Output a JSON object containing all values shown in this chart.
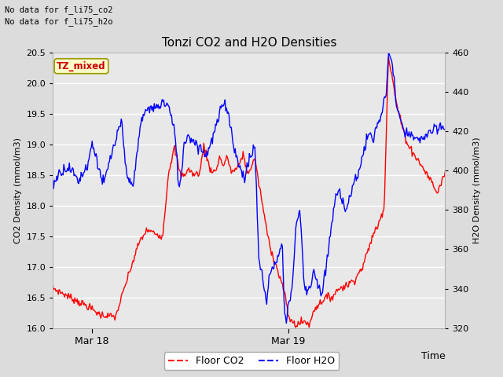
{
  "title": "Tonzi CO2 and H2O Densities",
  "xlabel": "Time",
  "ylabel_left": "CO2 Density (mmol/m3)",
  "ylabel_right": "H2O Density (mmol/m3)",
  "annotation_line1": "No data for f_li75_co2",
  "annotation_line2": "No data for f_li75_h2o",
  "tz_label": "TZ_mixed",
  "legend_entries": [
    "Floor CO2",
    "Floor H2O"
  ],
  "co2_ylim": [
    16.0,
    20.5
  ],
  "h2o_ylim": [
    320,
    460
  ],
  "co2_yticks": [
    16.0,
    16.5,
    17.0,
    17.5,
    18.0,
    18.5,
    19.0,
    19.5,
    20.0,
    20.5
  ],
  "h2o_yticks": [
    320,
    340,
    360,
    380,
    400,
    420,
    440,
    460
  ],
  "fig_bg": "#dcdcdc",
  "plot_bg": "#e8e8e8",
  "grid_color": "#ffffff",
  "co2_color": "red",
  "h2o_color": "blue",
  "xtick_pos": [
    0.1,
    0.6
  ],
  "xtick_labels": [
    "Mar 18",
    "Mar 19"
  ]
}
